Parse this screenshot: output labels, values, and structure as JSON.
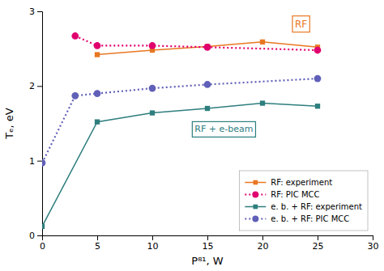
{
  "chart_data": {
    "type": "line",
    "xlabel": "P⁸¹, W",
    "ylabel": "Tₑ, eV",
    "xlim": [
      0,
      30
    ],
    "ylim": [
      0,
      3.0
    ],
    "xticks": [
      0,
      5,
      10,
      15,
      20,
      25,
      30
    ],
    "yticks": [
      0,
      1,
      2,
      3
    ],
    "grid": false,
    "legend": "lower right",
    "series": [
      {
        "name": "RF: experiment",
        "color": "#E87722",
        "marker": "square",
        "line_style": "solid",
        "x": [
          5,
          10,
          15,
          20,
          25
        ],
        "values": [
          2.42,
          2.48,
          2.53,
          2.59,
          2.52
        ]
      },
      {
        "name": "RF: PIC MCC",
        "color": "#E0006E",
        "marker": "circle",
        "line_style": "dotted",
        "x": [
          3,
          5,
          10,
          15,
          25
        ],
        "values": [
          2.67,
          2.54,
          2.54,
          2.52,
          2.48
        ]
      },
      {
        "name": "e. b. + RF: experiment",
        "color": "#2E7E7E",
        "marker": "square",
        "line_style": "solid",
        "x": [
          0,
          5,
          10,
          15,
          20,
          25
        ],
        "values": [
          0.12,
          1.52,
          1.64,
          1.7,
          1.77,
          1.73
        ]
      },
      {
        "name": "e. b. + RF: PIC MCC",
        "color": "#6060B8",
        "marker": "circle",
        "line_style": "dotted",
        "x": [
          0,
          3,
          5,
          10,
          15,
          25
        ],
        "values": [
          0.97,
          1.87,
          1.9,
          1.97,
          2.02,
          2.1
        ]
      }
    ],
    "annotations": [
      {
        "text": "RF",
        "x": 23.5,
        "y": 2.83,
        "color": "#E87722"
      },
      {
        "text": "RF + e-beam",
        "x": 16.5,
        "y": 1.42,
        "color": "#2E7E7E"
      }
    ]
  }
}
